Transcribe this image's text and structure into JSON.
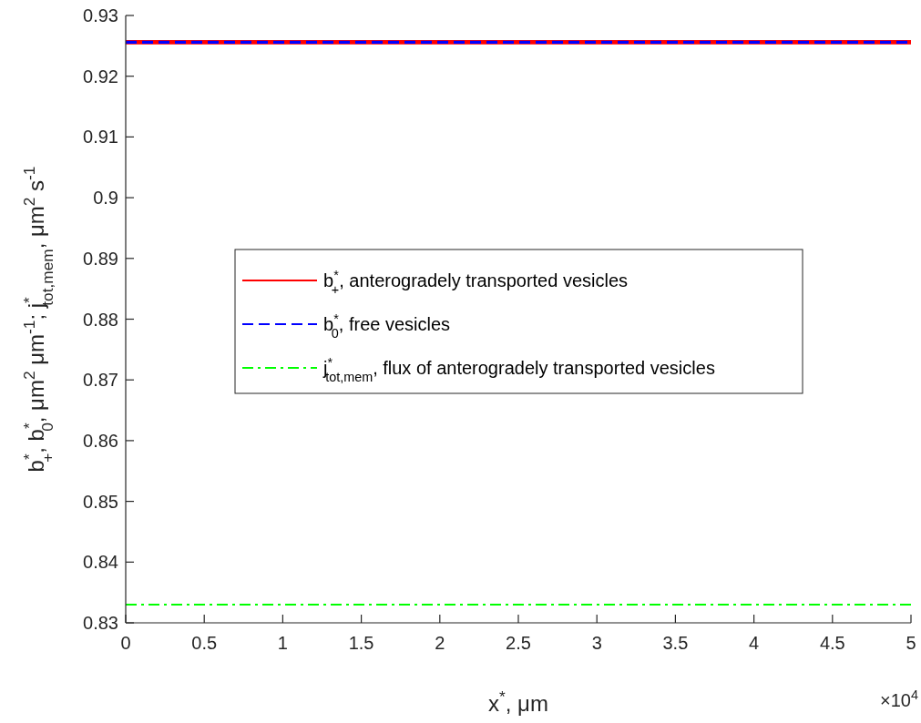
{
  "chart_data": {
    "type": "line",
    "xlabel": "x$^{*}$, μm",
    "ylabel": "b$^{*}$$_{+}$, b$^{*}$$_{0}$, μm$^{2}$ μm$^{-1}$; j$^{*}$$_{tot,mem}$, μm$^{2}$ s$^{-1}$",
    "x": [
      0,
      5
    ],
    "series": [
      {
        "name": "b$^{*}$$_{+}$, anterogradely transported vesicles",
        "color": "#ff0000",
        "values": [
          0.9256,
          0.9256
        ],
        "line_style": "solid"
      },
      {
        "name": "b$^{*}$$_{0}$, free vesicles",
        "color": "#0000ff",
        "values": [
          0.9256,
          0.9256
        ],
        "line_style": "dashed"
      },
      {
        "name": "j$^{*}$$_{tot,mem}$, flux of anterogradely transported vesicles",
        "color": "#00ff00",
        "values": [
          0.833,
          0.833
        ],
        "line_style": "dashdot"
      }
    ],
    "xlim": [
      0,
      5
    ],
    "xticks": [
      0,
      0.5,
      1,
      1.5,
      2,
      2.5,
      3,
      3.5,
      4,
      4.5,
      5
    ],
    "ylim": [
      0.83,
      0.93
    ],
    "yticks": [
      0.83,
      0.84,
      0.85,
      0.86,
      0.87,
      0.88,
      0.89,
      0.9,
      0.91,
      0.92,
      0.93
    ],
    "annotations": [
      "×10$^{4}$"
    ],
    "legend": "center",
    "grid": false
  }
}
